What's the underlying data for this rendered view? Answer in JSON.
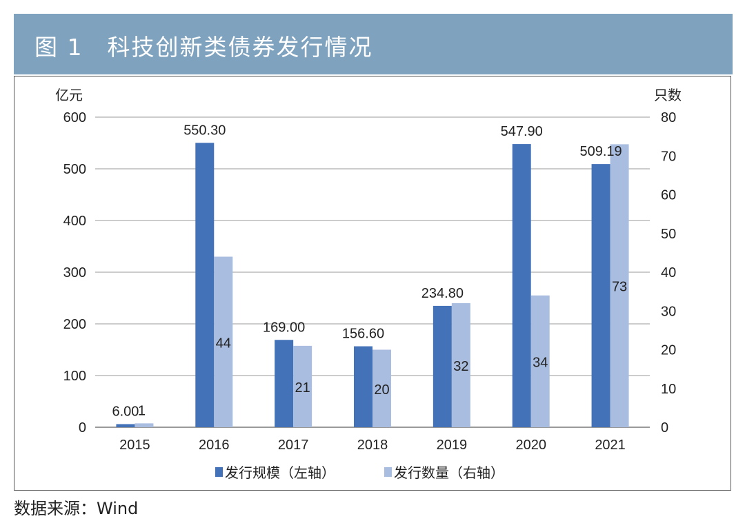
{
  "header": {
    "title": "图 1　科技创新类债券发行情况"
  },
  "source": "数据来源：Wind",
  "chart_data": {
    "type": "bar",
    "title": "",
    "categories": [
      "2015",
      "2016",
      "2017",
      "2018",
      "2019",
      "2020",
      "2021"
    ],
    "y_left": {
      "label": "亿元",
      "lim": [
        0,
        600
      ],
      "ticks": [
        0,
        100,
        200,
        300,
        400,
        500,
        600
      ]
    },
    "y_right": {
      "label": "只数",
      "lim": [
        0,
        80
      ],
      "ticks": [
        0,
        10,
        20,
        30,
        40,
        50,
        60,
        70,
        80
      ]
    },
    "grid": true,
    "legend_placement": "bottom",
    "series": [
      {
        "name": "发行规模（左轴）",
        "axis": "left",
        "color": "#4472b8",
        "values": [
          6.0,
          550.3,
          169.0,
          156.6,
          234.8,
          547.9,
          509.19
        ],
        "labels": [
          "6.00",
          "550.30",
          "169.00",
          "156.60",
          "234.80",
          "547.90",
          "509.19"
        ]
      },
      {
        "name": "发行数量（右轴）",
        "axis": "right",
        "color": "#a9bde0",
        "values": [
          1,
          44,
          21,
          20,
          32,
          34,
          73
        ],
        "labels": [
          "1",
          "44",
          "21",
          "20",
          "32",
          "34",
          "73"
        ]
      }
    ]
  }
}
